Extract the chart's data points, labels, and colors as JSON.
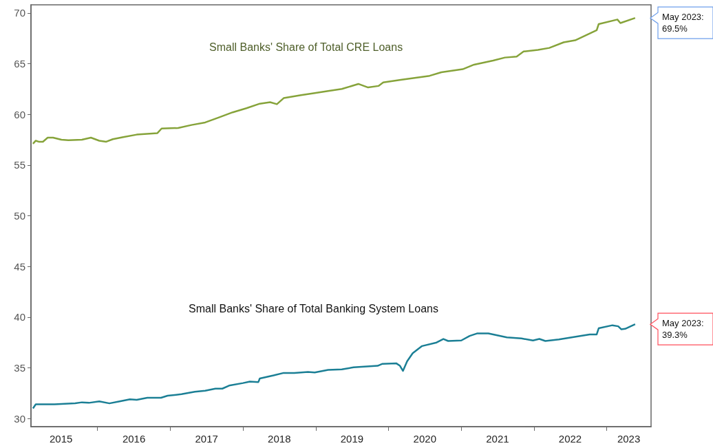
{
  "chart_data": {
    "type": "line",
    "xlim": [
      "2015-02-01",
      "2023-08-12"
    ],
    "ylim": [
      29.2,
      70.8
    ],
    "yticks": [
      30,
      35,
      40,
      45,
      50,
      55,
      60,
      65,
      70
    ],
    "xticks": [
      {
        "value": "2015-07-02",
        "label": "2015"
      },
      {
        "value": "2016-01-01",
        "label": null
      },
      {
        "value": "2016-07-02",
        "label": "2016"
      },
      {
        "value": "2017-01-01",
        "label": null
      },
      {
        "value": "2017-07-02",
        "label": "2017"
      },
      {
        "value": "2018-01-01",
        "label": null
      },
      {
        "value": "2018-07-02",
        "label": "2018"
      },
      {
        "value": "2019-01-01",
        "label": null
      },
      {
        "value": "2019-07-02",
        "label": "2019"
      },
      {
        "value": "2020-01-01",
        "label": null
      },
      {
        "value": "2020-07-02",
        "label": "2020"
      },
      {
        "value": "2021-01-01",
        "label": null
      },
      {
        "value": "2021-07-02",
        "label": "2021"
      },
      {
        "value": "2022-01-01",
        "label": null
      },
      {
        "value": "2022-07-02",
        "label": "2022"
      },
      {
        "value": "2023-01-01",
        "label": null
      },
      {
        "value": "2023-04-22",
        "label": "2023"
      }
    ],
    "series": [
      {
        "name": "Small Banks' Share of Total CRE Loans",
        "color": "#86a33a",
        "x": [
          "2015-02-11",
          "2015-02-25",
          "2015-03-12",
          "2015-04-02",
          "2015-04-26",
          "2015-05-23",
          "2015-07-04",
          "2015-08-08",
          "2015-10-15",
          "2015-11-29",
          "2016-01-10",
          "2016-02-14",
          "2016-03-18",
          "2016-05-09",
          "2016-07-16",
          "2016-10-28",
          "2016-11-18",
          "2017-02-09",
          "2017-04-17",
          "2017-06-25",
          "2017-09-02",
          "2017-11-10",
          "2018-01-18",
          "2018-03-26",
          "2018-05-17",
          "2018-06-20",
          "2018-07-24",
          "2018-10-19",
          "2018-12-27",
          "2019-03-04",
          "2019-05-12",
          "2019-08-03",
          "2019-09-21",
          "2019-11-12",
          "2019-12-06",
          "2020-03-03",
          "2020-07-26",
          "2020-09-23",
          "2021-01-08",
          "2021-03-06",
          "2021-06-10",
          "2021-08-08",
          "2021-10-06",
          "2021-11-10",
          "2022-01-21",
          "2022-03-19",
          "2022-05-30",
          "2022-07-27",
          "2022-11-12",
          "2022-11-22",
          "2023-02-24",
          "2023-03-11",
          "2023-05-24"
        ],
        "values": [
          57.1,
          57.4,
          57.3,
          57.3,
          57.7,
          57.7,
          57.5,
          57.45,
          57.5,
          57.7,
          57.4,
          57.3,
          57.55,
          57.75,
          58.0,
          58.15,
          58.6,
          58.65,
          58.95,
          59.2,
          59.7,
          60.2,
          60.6,
          61.05,
          61.2,
          61.0,
          61.6,
          61.9,
          62.1,
          62.3,
          62.5,
          63.0,
          62.65,
          62.8,
          63.15,
          63.4,
          63.8,
          64.15,
          64.45,
          64.9,
          65.3,
          65.6,
          65.7,
          66.2,
          66.35,
          66.55,
          67.1,
          67.3,
          68.3,
          68.9,
          69.35,
          69.0,
          69.5
        ]
      },
      {
        "name": "Small Banks' Share of Total Banking System Loans",
        "color": "#1b7f95",
        "x": [
          "2015-02-11",
          "2015-02-25",
          "2015-05-30",
          "2015-09-11",
          "2015-10-15",
          "2015-11-19",
          "2016-01-10",
          "2016-03-01",
          "2016-04-21",
          "2016-06-12",
          "2016-07-16",
          "2016-09-07",
          "2016-11-15",
          "2016-12-18",
          "2017-02-26",
          "2017-05-04",
          "2017-06-25",
          "2017-08-15",
          "2017-09-19",
          "2017-10-23",
          "2018-01-01",
          "2018-02-04",
          "2018-03-19",
          "2018-03-26",
          "2018-06-03",
          "2018-07-24",
          "2018-09-15",
          "2018-11-23",
          "2018-12-27",
          "2019-03-04",
          "2019-05-12",
          "2019-07-10",
          "2019-11-08",
          "2019-12-02",
          "2020-02-09",
          "2020-02-28",
          "2020-03-14",
          "2020-04-04",
          "2020-05-02",
          "2020-06-18",
          "2020-08-30",
          "2020-10-03",
          "2020-10-27",
          "2021-01-01",
          "2021-02-12",
          "2021-03-23",
          "2021-05-17",
          "2021-08-18",
          "2021-10-30",
          "2021-12-27",
          "2022-01-28",
          "2022-02-27",
          "2022-05-06",
          "2022-08-10",
          "2022-10-08",
          "2022-11-12",
          "2022-11-22",
          "2023-01-30",
          "2023-02-28",
          "2023-03-16",
          "2023-04-04",
          "2023-05-24"
        ],
        "values": [
          31.0,
          31.4,
          31.4,
          31.5,
          31.6,
          31.55,
          31.7,
          31.5,
          31.7,
          31.9,
          31.85,
          32.05,
          32.05,
          32.25,
          32.4,
          32.65,
          32.75,
          32.95,
          32.95,
          33.25,
          33.5,
          33.65,
          33.6,
          33.95,
          34.25,
          34.5,
          34.5,
          34.6,
          34.55,
          34.8,
          34.85,
          35.05,
          35.2,
          35.4,
          35.45,
          35.2,
          34.7,
          35.65,
          36.45,
          37.15,
          37.5,
          37.85,
          37.65,
          37.7,
          38.15,
          38.4,
          38.4,
          38.0,
          37.9,
          37.7,
          37.85,
          37.65,
          37.8,
          38.1,
          38.3,
          38.3,
          38.9,
          39.2,
          39.1,
          38.8,
          38.85,
          39.3
        ]
      }
    ],
    "annotations": [
      "May 2023: 69.5%",
      "May 2023: 39.3%"
    ]
  }
}
